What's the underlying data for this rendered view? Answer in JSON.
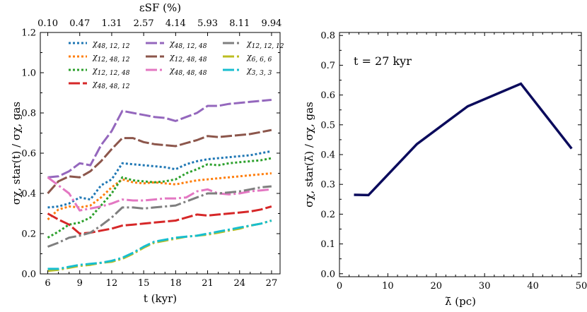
{
  "chart_data": [
    {
      "type": "line",
      "xlabel": "t (kyr)",
      "ylabel": "σχ, star(t) / σχ, gas",
      "top_xlabel": "εSF (%)",
      "xlim": [
        5.3,
        27.8
      ],
      "ylim": [
        0.0,
        1.2
      ],
      "xticks": [
        6,
        9,
        12,
        15,
        18,
        21,
        24,
        27
      ],
      "yticks": [
        0.0,
        0.2,
        0.4,
        0.6,
        0.8,
        1.0,
        1.2
      ],
      "top_ticks": [
        {
          "t": 6,
          "label": "0.10"
        },
        {
          "t": 9,
          "label": "0.47"
        },
        {
          "t": 12,
          "label": "1.31"
        },
        {
          "t": 15,
          "label": "2.57"
        },
        {
          "t": 18,
          "label": "4.14"
        },
        {
          "t": 21,
          "label": "5.93"
        },
        {
          "t": 24,
          "label": "8.11"
        },
        {
          "t": 27,
          "label": "9.94"
        }
      ],
      "x": [
        6,
        7,
        8,
        9,
        10,
        11,
        12,
        13,
        14,
        15,
        16,
        17,
        18,
        19,
        20,
        21,
        22,
        23,
        24,
        25,
        26,
        27
      ],
      "legend_position": "top",
      "series": [
        {
          "name": "χ48, 12, 12",
          "color": "#1f77b4",
          "dash": "3,3",
          "values": [
            0.33,
            0.335,
            0.35,
            0.38,
            0.37,
            0.44,
            0.47,
            0.55,
            0.545,
            0.54,
            0.535,
            0.53,
            0.52,
            0.545,
            0.56,
            0.57,
            0.575,
            0.58,
            0.585,
            0.59,
            0.6,
            0.61
          ]
        },
        {
          "name": "χ12, 48, 12",
          "color": "#ff7f0e",
          "dash": "3,3",
          "values": [
            0.27,
            0.32,
            0.335,
            0.33,
            0.34,
            0.38,
            0.43,
            0.47,
            0.455,
            0.45,
            0.455,
            0.45,
            0.445,
            0.455,
            0.465,
            0.47,
            0.475,
            0.48,
            0.485,
            0.49,
            0.495,
            0.5
          ]
        },
        {
          "name": "χ12, 12, 48",
          "color": "#2ca02c",
          "dash": "3,3",
          "values": [
            0.18,
            0.21,
            0.245,
            0.255,
            0.28,
            0.34,
            0.4,
            0.48,
            0.465,
            0.46,
            0.455,
            0.46,
            0.47,
            0.5,
            0.52,
            0.545,
            0.54,
            0.55,
            0.555,
            0.56,
            0.565,
            0.575
          ]
        },
        {
          "name": "χ48, 48, 12",
          "color": "#d62728",
          "dash": "16,4",
          "values": [
            0.3,
            0.27,
            0.245,
            0.2,
            0.205,
            0.215,
            0.225,
            0.24,
            0.245,
            0.25,
            0.255,
            0.26,
            0.265,
            0.28,
            0.295,
            0.29,
            0.295,
            0.3,
            0.305,
            0.31,
            0.32,
            0.335
          ]
        },
        {
          "name": "χ48, 12, 48",
          "color": "#9467bd",
          "dash": "16,4",
          "values": [
            0.48,
            0.485,
            0.51,
            0.55,
            0.54,
            0.64,
            0.71,
            0.81,
            0.8,
            0.79,
            0.78,
            0.775,
            0.76,
            0.78,
            0.8,
            0.835,
            0.835,
            0.845,
            0.85,
            0.855,
            0.86,
            0.865
          ]
        },
        {
          "name": "χ12, 48, 48",
          "color": "#8c564b",
          "dash": "16,4",
          "values": [
            0.4,
            0.46,
            0.485,
            0.48,
            0.51,
            0.56,
            0.62,
            0.675,
            0.675,
            0.655,
            0.645,
            0.64,
            0.635,
            0.65,
            0.665,
            0.685,
            0.68,
            0.685,
            0.69,
            0.695,
            0.705,
            0.715
          ]
        },
        {
          "name": "χ48, 48, 48",
          "color": "#e377c2",
          "dash": "16,4,3,4",
          "values": [
            0.48,
            0.44,
            0.4,
            0.315,
            0.325,
            0.335,
            0.35,
            0.37,
            0.365,
            0.365,
            0.37,
            0.375,
            0.375,
            0.38,
            0.41,
            0.42,
            0.4,
            0.395,
            0.4,
            0.41,
            0.415,
            0.42
          ]
        },
        {
          "name": "χ12, 12, 12",
          "color": "#7f7f7f",
          "dash": "16,4,3,4",
          "values": [
            0.135,
            0.155,
            0.18,
            0.19,
            0.205,
            0.24,
            0.28,
            0.33,
            0.33,
            0.325,
            0.33,
            0.335,
            0.34,
            0.36,
            0.38,
            0.4,
            0.4,
            0.405,
            0.41,
            0.42,
            0.43,
            0.435
          ]
        },
        {
          "name": "χ6, 6, 6",
          "color": "#bcbd22",
          "dash": "16,4,3,4",
          "values": [
            0.015,
            0.02,
            0.03,
            0.04,
            0.045,
            0.055,
            0.06,
            0.075,
            0.1,
            0.13,
            0.155,
            0.165,
            0.175,
            0.185,
            0.19,
            0.195,
            0.205,
            0.215,
            0.225,
            0.24,
            0.25,
            0.265
          ]
        },
        {
          "name": "χ3, 3, 3",
          "color": "#17becf",
          "dash": "16,4,3,4",
          "values": [
            0.025,
            0.025,
            0.035,
            0.045,
            0.05,
            0.055,
            0.065,
            0.08,
            0.105,
            0.135,
            0.16,
            0.17,
            0.18,
            0.185,
            0.19,
            0.2,
            0.21,
            0.22,
            0.23,
            0.24,
            0.25,
            0.265
          ]
        }
      ]
    },
    {
      "type": "line",
      "xlabel": "λ̄ (pc)",
      "ylabel": "σχ, star(λ̄) / σχ, gas",
      "annotation": "t = 27 kyr",
      "xlim": [
        0,
        50
      ],
      "ylim": [
        -0.01,
        0.81
      ],
      "xticks": [
        0,
        10,
        20,
        30,
        40,
        50
      ],
      "yticks": [
        0.0,
        0.1,
        0.2,
        0.3,
        0.4,
        0.5,
        0.6,
        0.7,
        0.8
      ],
      "series": [
        {
          "color": "#0b0b5c",
          "x": [
            3,
            6,
            16,
            26.5,
            37.5,
            48
          ],
          "values": [
            0.265,
            0.264,
            0.435,
            0.562,
            0.638,
            0.42
          ]
        }
      ]
    }
  ]
}
